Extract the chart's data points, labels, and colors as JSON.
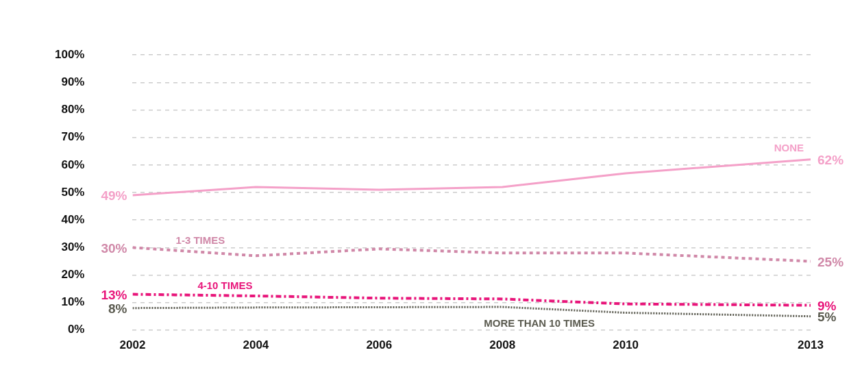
{
  "chart_data": {
    "type": "line",
    "x": [
      2002,
      2004,
      2006,
      2008,
      2010,
      2013
    ],
    "xlim": [
      2002,
      2013
    ],
    "xticks": [
      2002,
      2004,
      2006,
      2008,
      2010,
      2013
    ],
    "ylim": [
      0,
      100
    ],
    "yticks": [
      {
        "value": 0,
        "label": "0%"
      },
      {
        "value": 10,
        "label": "10%"
      },
      {
        "value": 20,
        "label": "20%"
      },
      {
        "value": 30,
        "label": "30%"
      },
      {
        "value": 40,
        "label": "40%"
      },
      {
        "value": 50,
        "label": "50%"
      },
      {
        "value": 60,
        "label": "60%"
      },
      {
        "value": 70,
        "label": "70%"
      },
      {
        "value": 80,
        "label": "80%"
      },
      {
        "value": 90,
        "label": "90%"
      },
      {
        "value": 100,
        "label": "100%"
      }
    ],
    "grid": "y",
    "legend": false,
    "marker": "none",
    "series": [
      {
        "name": "NONE",
        "color": "#f4a0c8",
        "line_style": "solid",
        "values": [
          49,
          52,
          51,
          52,
          57,
          62
        ],
        "value_labels": [
          "49%",
          null,
          null,
          null,
          null,
          "62%"
        ]
      },
      {
        "name": "1-3 TIMES",
        "color": "#d088a8",
        "line_style": "dashed",
        "values": [
          30,
          27,
          29.5,
          28,
          28,
          25
        ],
        "value_labels": [
          "30%",
          null,
          null,
          null,
          null,
          "25%"
        ]
      },
      {
        "name": "4-10 TIMES",
        "color": "#e8157a",
        "line_style": "dashdot",
        "values": [
          13,
          12.4,
          11.6,
          11.3,
          9.5,
          9
        ],
        "value_labels": [
          "13%",
          null,
          null,
          null,
          null,
          "9%"
        ]
      },
      {
        "name": "MORE THAN 10 TIMES",
        "color": "#5a5a4f",
        "line_style": "dotted",
        "values": [
          8,
          8.2,
          8.3,
          8.4,
          6.3,
          5
        ],
        "value_labels": [
          "8%",
          null,
          null,
          null,
          null,
          "5%"
        ]
      }
    ]
  }
}
